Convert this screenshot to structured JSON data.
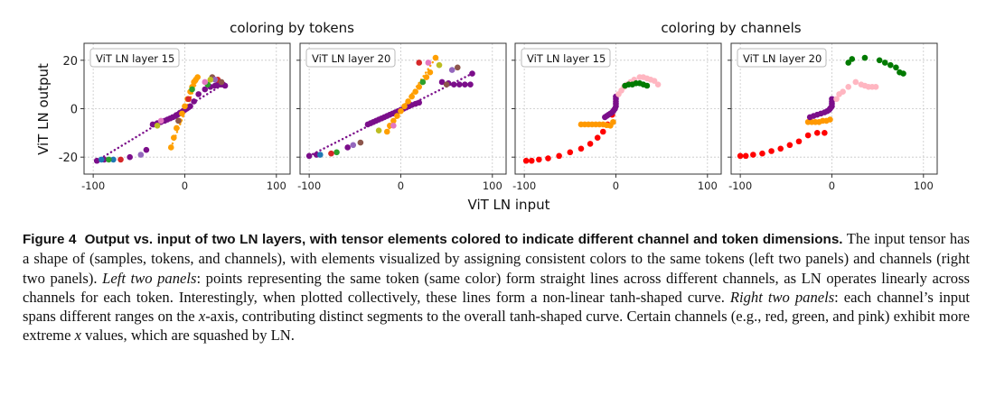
{
  "figure": {
    "group_titles": [
      "coloring by tokens",
      "coloring by channels"
    ],
    "ylabel": "ViT LN output",
    "xlabel": "ViT LN input"
  },
  "chart_data": [
    {
      "type": "scatter",
      "panel_label": "ViT LN layer 15",
      "coloring": "tokens",
      "xlim": [
        -110,
        115
      ],
      "ylim": [
        -27,
        27
      ],
      "xticks": [
        -100,
        0,
        100
      ],
      "yticks": [
        -20,
        0,
        20
      ],
      "xtick_labels": [
        "-100",
        "0",
        "100"
      ],
      "ytick_labels": [
        "-20",
        "0",
        "20"
      ],
      "grid": true,
      "series": [
        {
          "color": "#7b0e8a",
          "dotted_line": [
            [
              -96,
              -21.5
            ],
            [
              42,
              10
            ]
          ],
          "x": [
            -96,
            -88,
            -60,
            -42,
            -35,
            -30,
            -26,
            -22,
            -19,
            -16,
            -13,
            -10,
            -8,
            -6,
            -4,
            -2,
            0,
            2,
            4,
            6,
            10,
            15,
            22,
            28,
            33,
            36,
            38,
            40,
            42,
            44
          ],
          "y": [
            -21.5,
            -21,
            -20,
            -17,
            -6.5,
            -6,
            -5.5,
            -5,
            -4.5,
            -4,
            -3.5,
            -3,
            -2.5,
            -2,
            -1.5,
            -1,
            -0.5,
            0,
            0.5,
            1,
            3,
            6,
            8,
            9,
            9.5,
            10,
            10,
            10,
            10,
            9.5
          ]
        },
        {
          "color": "#ff9f00",
          "dotted_line": [
            [
              -15,
              -16
            ],
            [
              15,
              13
            ]
          ],
          "x": [
            -15,
            -12,
            -9,
            -6,
            -3,
            0,
            3,
            6,
            8,
            10,
            12,
            14
          ],
          "y": [
            -16,
            -12,
            -8,
            -5,
            -2,
            1,
            4,
            7,
            9,
            11,
            12,
            13
          ]
        },
        {
          "color": "#1f77b4",
          "x": [
            -91,
            -78
          ],
          "y": [
            -21,
            -21
          ]
        },
        {
          "color": "#2ca02c",
          "x": [
            -83,
            8,
            25
          ],
          "y": [
            -21,
            8,
            10
          ]
        },
        {
          "color": "#d62728",
          "x": [
            -70,
            4,
            36
          ],
          "y": [
            -21,
            4,
            12
          ]
        },
        {
          "color": "#8c564b",
          "x": [
            -7,
            30,
            40
          ],
          "y": [
            -5,
            13,
            11
          ]
        },
        {
          "color": "#e377c2",
          "x": [
            -26,
            22
          ],
          "y": [
            -5,
            11
          ]
        },
        {
          "color": "#9467bd",
          "x": [
            -48,
            33
          ],
          "y": [
            -19,
            12
          ]
        },
        {
          "color": "#bcbd22",
          "x": [
            -30,
            28
          ],
          "y": [
            -7,
            12
          ]
        }
      ]
    },
    {
      "type": "scatter",
      "panel_label": "ViT LN layer 20",
      "coloring": "tokens",
      "xlim": [
        -110,
        115
      ],
      "ylim": [
        -27,
        27
      ],
      "xticks": [
        -100,
        0,
        100
      ],
      "yticks": [
        -20,
        0,
        20
      ],
      "xtick_labels": [
        "-100",
        "0",
        "100"
      ],
      "ytick_labels": [
        "-20",
        "0",
        "20"
      ],
      "grid": true,
      "series": [
        {
          "color": "#7b0e8a",
          "dotted_line": [
            [
              -100,
              -19.5
            ],
            [
              78,
              14.5
            ]
          ],
          "x": [
            -100,
            -92,
            -58,
            -36,
            -33,
            -30,
            -27,
            -24,
            -21,
            -18,
            -15,
            -12,
            -9,
            -6,
            -3,
            0,
            3,
            6,
            9,
            12,
            16,
            20,
            45,
            52,
            58,
            64,
            70,
            76,
            78
          ],
          "y": [
            -19.5,
            -19,
            -16,
            -6.5,
            -6,
            -5.5,
            -5,
            -4.5,
            -4,
            -3.5,
            -3,
            -2.5,
            -2,
            -1.5,
            -1,
            -0.5,
            0,
            0.5,
            1,
            1.5,
            2,
            2.5,
            11,
            10.5,
            10,
            10,
            10,
            10,
            14.5
          ]
        },
        {
          "color": "#ff9f00",
          "dotted_line": [
            [
              -15,
              -9.5
            ],
            [
              38,
              21
            ]
          ],
          "x": [
            -15,
            -12,
            -8,
            -4,
            0,
            4,
            8,
            12,
            16,
            20,
            24,
            28,
            32,
            38
          ],
          "y": [
            -9.5,
            -7,
            -5,
            -3,
            -1,
            1,
            3,
            5,
            7,
            9,
            11,
            13,
            15,
            21
          ]
        },
        {
          "color": "#1f77b4",
          "x": [
            -88
          ],
          "y": [
            -19
          ]
        },
        {
          "color": "#2ca02c",
          "x": [
            -70,
            24
          ],
          "y": [
            -18,
            11
          ]
        },
        {
          "color": "#d62728",
          "x": [
            -76,
            20
          ],
          "y": [
            -18.5,
            19
          ]
        },
        {
          "color": "#8c564b",
          "x": [
            -44,
            50,
            62
          ],
          "y": [
            -14,
            10,
            17
          ]
        },
        {
          "color": "#e377c2",
          "x": [
            -8,
            30
          ],
          "y": [
            -7,
            19
          ]
        },
        {
          "color": "#9467bd",
          "x": [
            -52,
            56
          ],
          "y": [
            -15,
            16
          ]
        },
        {
          "color": "#bcbd22",
          "x": [
            -24,
            42
          ],
          "y": [
            -9,
            18
          ]
        }
      ]
    },
    {
      "type": "scatter",
      "panel_label": "ViT LN layer 15",
      "coloring": "channels",
      "xlim": [
        -110,
        115
      ],
      "ylim": [
        -27,
        27
      ],
      "xticks": [
        -100,
        0,
        100
      ],
      "yticks": [
        -20,
        0,
        20
      ],
      "xtick_labels": [
        "-100",
        "0",
        "100"
      ],
      "ytick_labels": [
        "-20",
        "0",
        "20"
      ],
      "grid": true,
      "series": [
        {
          "color": "#ff0000",
          "x": [
            -98,
            -92,
            -84,
            -74,
            -62,
            -50,
            -38,
            -28,
            -20,
            -14,
            -9,
            -4
          ],
          "y": [
            -21.5,
            -21.5,
            -21,
            -20.5,
            -19.5,
            -18,
            -16.5,
            -14.5,
            -12,
            -9.5,
            -6.5,
            -2.5
          ]
        },
        {
          "color": "#ff9900",
          "x": [
            -38,
            -34,
            -30,
            -26,
            -22,
            -18,
            -14,
            -10,
            -6,
            -3
          ],
          "y": [
            -6.5,
            -6.5,
            -6.5,
            -6.5,
            -6.5,
            -6.5,
            -6.5,
            -6.8,
            -7,
            -5.5
          ]
        },
        {
          "color": "#7b0e8a",
          "x": [
            -12,
            -10,
            -8,
            -6,
            -4,
            -3,
            -2,
            -1,
            0,
            0,
            0,
            0,
            0
          ],
          "y": [
            -3.5,
            -3,
            -2.5,
            -2,
            -1.5,
            -1,
            -0.5,
            0,
            1,
            2,
            3,
            4,
            5
          ]
        },
        {
          "color": "#ffb6c1",
          "x": [
            3,
            6,
            9,
            12,
            16,
            20,
            26,
            30,
            34,
            38,
            42,
            46
          ],
          "y": [
            6,
            7.5,
            9,
            10,
            11,
            12,
            13,
            13,
            12.5,
            12,
            11.5,
            10
          ]
        },
        {
          "color": "#007a00",
          "x": [
            10,
            14,
            18,
            22,
            26,
            30,
            34
          ],
          "y": [
            9.5,
            10,
            10,
            10.5,
            10.5,
            10,
            9.5
          ]
        }
      ]
    },
    {
      "type": "scatter",
      "panel_label": "ViT LN layer 20",
      "coloring": "channels",
      "xlim": [
        -110,
        115
      ],
      "ylim": [
        -27,
        27
      ],
      "xticks": [
        -100,
        0,
        100
      ],
      "yticks": [
        -20,
        0,
        20
      ],
      "xtick_labels": [
        "-100",
        "0",
        "100"
      ],
      "ytick_labels": [
        "-20",
        "0",
        "20"
      ],
      "grid": true,
      "series": [
        {
          "color": "#ff0000",
          "x": [
            -100,
            -94,
            -86,
            -76,
            -66,
            -56,
            -46,
            -36,
            -26,
            -16,
            -8
          ],
          "y": [
            -19.5,
            -19.5,
            -19,
            -18.5,
            -17.5,
            -16.5,
            -15,
            -13.5,
            -11,
            -10,
            -10
          ]
        },
        {
          "color": "#ff9900",
          "x": [
            -26,
            -22,
            -18,
            -14,
            -10,
            -6,
            -2
          ],
          "y": [
            -5.5,
            -5.5,
            -5.5,
            -5.5,
            -5,
            -5,
            -4.5
          ]
        },
        {
          "color": "#7b0e8a",
          "x": [
            -24,
            -20,
            -16,
            -12,
            -8,
            -5,
            -3,
            -2,
            -1,
            0,
            0,
            0,
            0
          ],
          "y": [
            -3.5,
            -3,
            -2.5,
            -2,
            -1.5,
            -1,
            -0.5,
            0,
            0.5,
            1,
            2,
            3,
            4
          ]
        },
        {
          "color": "#ffb6c1",
          "x": [
            5,
            8,
            12,
            18,
            26,
            32,
            36,
            40,
            44,
            48
          ],
          "y": [
            4,
            6,
            7,
            9,
            11,
            10,
            9.5,
            9,
            9,
            9
          ]
        },
        {
          "color": "#007a00",
          "x": [
            18,
            22,
            36,
            52,
            58,
            64,
            70,
            74,
            78
          ],
          "y": [
            19,
            20.5,
            21,
            20,
            19,
            18,
            17,
            15,
            14.5
          ]
        }
      ]
    }
  ],
  "caption": {
    "label": "Figure 4",
    "title": "Output vs. input of two LN layers, with tensor elements colored to indicate different channel and token dimensions.",
    "text_1": "The input tensor has a shape of (samples, tokens, and channels), with elements visualized by assigning consistent colors to the same tokens (left two panels) and channels (right two panels).",
    "italic_1": "Left two panels",
    "text_2": ": points representing the same token (same color) form straight lines across different channels, as LN operates linearly across channels for each token. Interestingly, when plotted collectively, these lines form a non-linear tanh-shaped curve.",
    "italic_2": "Right two panels",
    "text_3": ": each channel’s input spans different ranges on the",
    "italic_x1": "x",
    "text_4": "-axis, contributing distinct segments to the overall tanh-shaped curve. Certain channels (e.g., red, green, and pink) exhibit more extreme",
    "italic_x2": "x",
    "text_5": "values, which are squashed by LN."
  }
}
